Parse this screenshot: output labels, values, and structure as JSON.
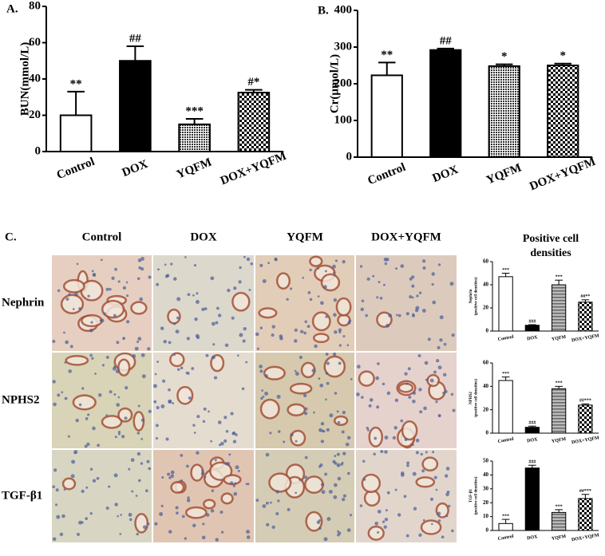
{
  "chart_data": [
    {
      "type": "bar",
      "title": "A.",
      "ylabel": [
        "BUN(mmol/L)"
      ],
      "categories": [
        "Control",
        "DOX",
        "YQFM",
        "DOX+YQFM"
      ],
      "values": [
        20,
        50,
        15,
        32.5
      ],
      "errors": [
        13,
        8,
        3,
        1.5
      ],
      "annotations": [
        "**",
        "##",
        "***",
        "#*"
      ],
      "bar_styles": [
        "white",
        "black",
        "dots",
        "checker"
      ],
      "ylim": [
        0,
        80
      ],
      "yticks": [
        0,
        20,
        40,
        60,
        80
      ]
    },
    {
      "type": "bar",
      "title": "B.",
      "ylabel": [
        "Cr(μmol/L)"
      ],
      "categories": [
        "Control",
        "DOX",
        "YQFM",
        "DOX+YQFM"
      ],
      "values": [
        223,
        292,
        248,
        250
      ],
      "errors": [
        35,
        4,
        5,
        5
      ],
      "annotations": [
        "**",
        "##",
        "*",
        "*"
      ],
      "bar_styles": [
        "white",
        "black",
        "dots",
        "checker"
      ],
      "ylim": [
        0,
        400
      ],
      "yticks": [
        0,
        100,
        200,
        300,
        400
      ]
    },
    {
      "type": "bar",
      "ylabel": [
        "Nephrin",
        "(positive cell densities)"
      ],
      "categories": [
        "Control",
        "DOX",
        "YQFM",
        "DOX+YQFM"
      ],
      "values": [
        47,
        5,
        40,
        25
      ],
      "errors": [
        3,
        0.5,
        4,
        2
      ],
      "annotations": [
        "***",
        "###",
        "***",
        "##**"
      ],
      "bar_styles": [
        "white",
        "black",
        "hatch",
        "checker"
      ],
      "ylim": [
        0,
        60
      ],
      "yticks": [
        0,
        20,
        40,
        60
      ]
    },
    {
      "type": "bar",
      "ylabel": [
        "NPHS2",
        "(positive cell densities)"
      ],
      "categories": [
        "Control",
        "DOX",
        "YQFM",
        "DOX+YQFM"
      ],
      "values": [
        45,
        5,
        38,
        24
      ],
      "errors": [
        3,
        1,
        2,
        1
      ],
      "annotations": [
        "***",
        "###",
        "***",
        "##***"
      ],
      "bar_styles": [
        "white",
        "black",
        "hatch",
        "checker"
      ],
      "ylim": [
        0,
        60
      ],
      "yticks": [
        0,
        20,
        40,
        60
      ]
    },
    {
      "type": "bar",
      "ylabel": [
        "TGF-β1",
        "(positive cell densities)"
      ],
      "categories": [
        "Control",
        "DOX",
        "YQFM",
        "DOX+YQFM"
      ],
      "values": [
        5,
        45,
        13,
        23
      ],
      "errors": [
        3,
        2,
        2,
        3
      ],
      "annotations": [
        "***",
        "###",
        "***",
        "##***"
      ],
      "bar_styles": [
        "white",
        "black",
        "hatch",
        "checker"
      ],
      "ylim": [
        0,
        50
      ],
      "yticks": [
        0,
        10,
        20,
        30,
        40,
        50
      ]
    }
  ],
  "panel_c": {
    "label": "C.",
    "columns": [
      "Control",
      "DOX",
      "YQFM",
      "DOX+YQFM"
    ],
    "rows": [
      "Nephrin",
      "NPHS2",
      "TGF-β1"
    ],
    "side_title": [
      "Positive cell",
      "densities"
    ]
  }
}
